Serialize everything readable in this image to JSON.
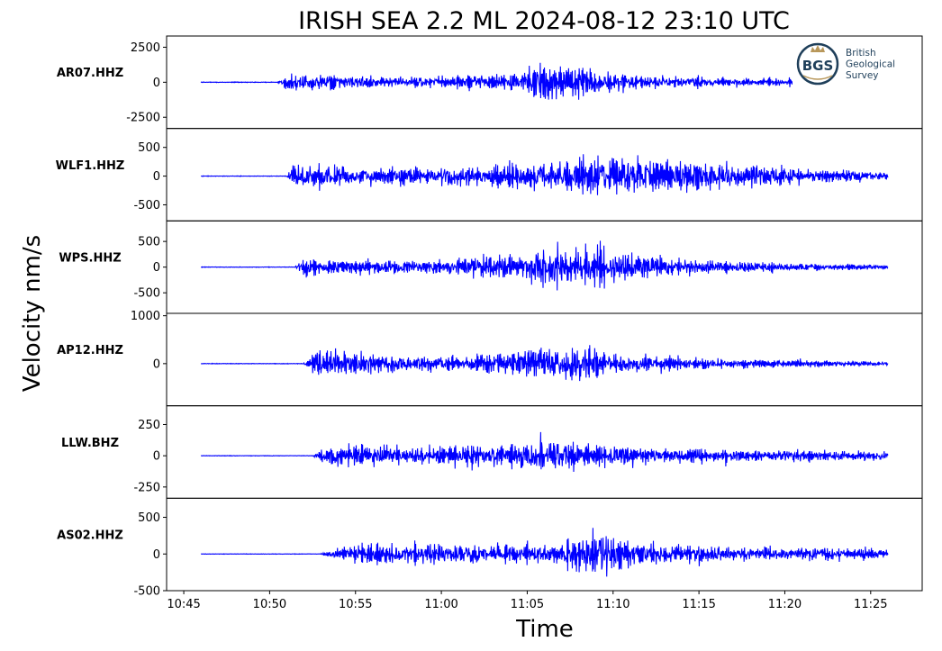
{
  "chart_data": {
    "type": "line",
    "title": "IRISH SEA 2.2 ML   2024-08-12 23:10 UTC",
    "ylabel": "Velocity nm/s",
    "xlabel": "Time",
    "x_ticks": [
      "10:45",
      "10:50",
      "10:55",
      "11:00",
      "11:05",
      "11:10",
      "11:15",
      "11:20",
      "11:25"
    ],
    "x_range": [
      "10:44",
      "11:28"
    ],
    "data_start": "10:46",
    "data_end": "11:26",
    "line_color": "#0000ff",
    "grid": false,
    "logo": {
      "label": "BGS",
      "text": [
        "British",
        "Geological",
        "Survey"
      ]
    },
    "panels": [
      {
        "channel": "AR07.HHZ",
        "ylim": [
          -3300,
          3300
        ],
        "yticks": [
          2500,
          0,
          -2500
        ],
        "ytick_labels": [
          "2500",
          "0",
          "-2500"
        ],
        "onset": "10:50.5",
        "peak": 3300,
        "envelope": [
          [
            0,
            0.03
          ],
          [
            0.6,
            0.35
          ],
          [
            6,
            0.2
          ],
          [
            12,
            0.3
          ],
          [
            13.5,
            0.38
          ],
          [
            16,
            0.85
          ],
          [
            18,
            0.55
          ],
          [
            22,
            0.25
          ],
          [
            30,
            0.14
          ],
          [
            40,
            0.08
          ]
        ]
      },
      {
        "channel": "WLF1.HHZ",
        "ylim": [
          -780,
          830
        ],
        "yticks": [
          500,
          0,
          -500
        ],
        "ytick_labels": [
          "500",
          "0",
          "-500"
        ],
        "onset": "10:51",
        "peak": 760,
        "envelope": [
          [
            0,
            0.06
          ],
          [
            0.5,
            0.55
          ],
          [
            5,
            0.45
          ],
          [
            11,
            0.4
          ],
          [
            15,
            0.55
          ],
          [
            19,
            0.95
          ],
          [
            21,
            0.7
          ],
          [
            26,
            0.5
          ],
          [
            32,
            0.3
          ],
          [
            35,
            0.18
          ]
        ]
      },
      {
        "channel": "WPS.HHZ",
        "ylim": [
          -900,
          900
        ],
        "yticks": [
          500,
          0,
          -500
        ],
        "ytick_labels": [
          "500",
          "0",
          "-500"
        ],
        "onset": "10:51.5",
        "peak": 850,
        "envelope": [
          [
            0,
            0.06
          ],
          [
            0.5,
            0.4
          ],
          [
            5,
            0.28
          ],
          [
            10,
            0.38
          ],
          [
            13,
            0.6
          ],
          [
            16,
            1.0
          ],
          [
            18,
            0.75
          ],
          [
            22,
            0.35
          ],
          [
            28,
            0.18
          ],
          [
            34.5,
            0.1
          ]
        ]
      },
      {
        "channel": "AP12.HHZ",
        "ylim": [
          -880,
          1050
        ],
        "yticks": [
          1000,
          0
        ],
        "ytick_labels": [
          "1000",
          "0"
        ],
        "onset": "10:52",
        "peak": 950,
        "envelope": [
          [
            0,
            0.05
          ],
          [
            0.8,
            0.6
          ],
          [
            3,
            0.45
          ],
          [
            9,
            0.28
          ],
          [
            13,
            0.6
          ],
          [
            15,
            0.92
          ],
          [
            18,
            0.4
          ],
          [
            24,
            0.2
          ],
          [
            34,
            0.1
          ]
        ]
      },
      {
        "channel": "LLW.BHZ",
        "ylim": [
          -340,
          400
        ],
        "yticks": [
          250,
          0,
          -250
        ],
        "ytick_labels": [
          "250",
          "0",
          "-250"
        ],
        "onset": "10:52.5",
        "peak": 340,
        "envelope": [
          [
            0,
            0.05
          ],
          [
            0.8,
            0.5
          ],
          [
            6,
            0.42
          ],
          [
            12,
            0.55
          ],
          [
            13.5,
            0.95
          ],
          [
            16,
            0.5
          ],
          [
            22,
            0.3
          ],
          [
            33.5,
            0.2
          ]
        ]
      },
      {
        "channel": "AS02.HHZ",
        "ylim": [
          -500,
          760
        ],
        "yticks": [
          500,
          0,
          -500
        ],
        "ytick_labels": [
          "500",
          "0",
          "-500"
        ],
        "onset": "10:53",
        "peak": 500,
        "envelope": [
          [
            0,
            0.05
          ],
          [
            1,
            0.3
          ],
          [
            3,
            0.55
          ],
          [
            7,
            0.55
          ],
          [
            10,
            0.45
          ],
          [
            14,
            0.5
          ],
          [
            16,
            1.3
          ],
          [
            18,
            0.6
          ],
          [
            25,
            0.35
          ],
          [
            33,
            0.3
          ]
        ]
      }
    ]
  }
}
